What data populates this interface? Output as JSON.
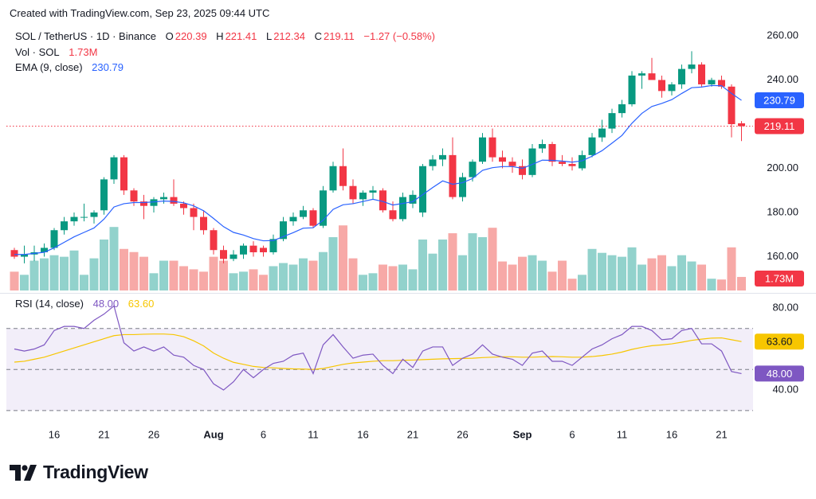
{
  "header": {
    "created": "Created with TradingView.com, Sep 23, 2025 09:44 UTC"
  },
  "chart_data": [
    {
      "type": "candlestick",
      "symbol": "SOL / TetherUS · 1D · Binance",
      "ohlc_labels": [
        "O",
        "H",
        "L",
        "C"
      ],
      "change": "−1.27 (−0.58%)",
      "categories": [
        null,
        null,
        null,
        null,
        "16",
        null,
        null,
        null,
        null,
        "21",
        null,
        null,
        null,
        null,
        "26",
        null,
        null,
        null,
        null,
        null,
        "Aug",
        null,
        null,
        null,
        null,
        "6",
        null,
        null,
        null,
        null,
        "11",
        null,
        null,
        null,
        null,
        "16",
        null,
        null,
        null,
        null,
        "21",
        null,
        null,
        null,
        null,
        "26",
        null,
        null,
        null,
        null,
        null,
        "Sep",
        null,
        null,
        null,
        null,
        "6",
        null,
        null,
        null,
        null,
        "11",
        null,
        null,
        null,
        null,
        "16",
        null,
        null,
        null,
        null,
        "21",
        null,
        null
      ],
      "open": [
        163,
        160,
        161,
        162,
        164,
        172,
        176,
        178,
        178,
        181,
        195,
        205,
        190,
        185,
        183,
        186,
        187,
        184,
        182,
        178,
        172,
        163,
        159,
        161,
        165,
        164,
        162,
        168,
        176,
        178,
        181,
        174,
        190,
        201,
        192,
        186,
        189,
        190,
        181,
        177,
        184,
        180,
        201,
        204,
        206,
        187,
        196,
        203,
        214,
        205,
        203,
        201,
        197,
        209,
        211,
        203,
        202,
        200,
        206,
        214,
        218,
        225,
        229,
        242,
        243,
        240,
        235,
        238,
        245,
        247,
        238,
        240,
        237,
        220.39
      ],
      "high": [
        164,
        165,
        165,
        166,
        173,
        178,
        180,
        184,
        181,
        196,
        206,
        206,
        191,
        188,
        187,
        189,
        195,
        185,
        184,
        181,
        173,
        165,
        163,
        166,
        167,
        165,
        170,
        178,
        180,
        183,
        182,
        192,
        203,
        209,
        195,
        190,
        192,
        191,
        185,
        189,
        190,
        202,
        206,
        209,
        214,
        198,
        204,
        216,
        218,
        208,
        205,
        204,
        211,
        213,
        212,
        206,
        205,
        208,
        216,
        222,
        227,
        231,
        244,
        244,
        250,
        242,
        239,
        247,
        253,
        248,
        241,
        242,
        238,
        221.41
      ],
      "low": [
        159,
        157,
        158,
        160,
        163,
        170,
        174,
        176,
        175,
        179,
        193,
        188,
        183,
        177,
        180,
        184,
        183,
        179,
        172,
        170,
        161,
        157,
        158,
        159,
        160,
        160,
        161,
        167,
        174,
        177,
        173,
        173,
        189,
        190,
        184,
        183,
        186,
        180,
        176,
        176,
        182,
        178,
        199,
        201,
        186,
        185,
        194,
        202,
        203,
        200,
        198,
        195,
        196,
        207,
        201,
        201,
        199,
        199,
        205,
        212,
        216,
        223,
        228,
        236,
        240,
        232,
        233,
        236,
        243,
        237,
        237,
        236,
        214,
        212.34
      ],
      "close": [
        160,
        161,
        162,
        164,
        172,
        176,
        178,
        178,
        180,
        195,
        205,
        190,
        185,
        183,
        186,
        187,
        184,
        182,
        178,
        172,
        163,
        159,
        161,
        165,
        162,
        162,
        168,
        176,
        178,
        181,
        174,
        190,
        201,
        192,
        186,
        189,
        190,
        181,
        177,
        187,
        188,
        201,
        204,
        206,
        187,
        196,
        203,
        214,
        205,
        203,
        201,
        197,
        209,
        211,
        203,
        202,
        201,
        206,
        214,
        218,
        225,
        229,
        242,
        243,
        240,
        235,
        238,
        245,
        247,
        238,
        240,
        237,
        220,
        219.11
      ],
      "up_color": "#089981",
      "down_color": "#f23645",
      "ylim": [
        144.7,
        265.4
      ],
      "yticks": [
        {
          "value": 160,
          "label": "160.00"
        },
        {
          "value": 180,
          "label": "180.00"
        },
        {
          "value": 200,
          "label": "200.00"
        },
        {
          "value": 220,
          "label": "220.00"
        },
        {
          "value": 240,
          "label": "240.00"
        },
        {
          "value": 260,
          "label": "260.00"
        }
      ],
      "volume": {
        "name": "Vol · SOL",
        "values": [
          2.4,
          2.0,
          3.8,
          4.1,
          4.5,
          4.3,
          5.1,
          2.0,
          4.1,
          6.5,
          8.1,
          5.3,
          4.9,
          4.3,
          2.2,
          3.8,
          3.8,
          3.1,
          2.7,
          2.4,
          4.3,
          3.8,
          2.2,
          2.4,
          2.7,
          2.0,
          3.1,
          3.5,
          3.3,
          4.1,
          3.8,
          4.9,
          6.8,
          8.3,
          4.1,
          2.0,
          2.2,
          3.3,
          3.1,
          3.3,
          2.7,
          6.5,
          4.7,
          6.5,
          7.3,
          4.5,
          7.3,
          6.8,
          8.0,
          3.7,
          3.3,
          4.3,
          4.5,
          3.8,
          2.4,
          3.8,
          1.5,
          2.0,
          5.3,
          4.8,
          4.5,
          4.3,
          5.5,
          3.3,
          4.1,
          4.5,
          3.1,
          4.5,
          3.7,
          3.3,
          1.5,
          1.4,
          5.5,
          1.73
        ],
        "value_labels": {
          "73": "1.73M"
        },
        "ylim": [
          0,
          34
        ],
        "up_color": "#92d2cc",
        "down_color": "#f7a9a7"
      },
      "ema": {
        "name": "EMA (9, close)",
        "color": "#2962ff",
        "values": [
          161,
          161,
          161.5,
          162,
          164,
          166.5,
          169,
          171,
          173,
          177,
          182.5,
          184,
          184.5,
          184.5,
          184.8,
          185.2,
          185,
          184.4,
          183,
          180.8,
          177.3,
          173.6,
          171,
          169.8,
          168.2,
          167.2,
          167.3,
          169.1,
          170.9,
          172.9,
          173.1,
          176.5,
          181.4,
          183.5,
          184,
          185,
          186,
          185,
          183.4,
          184.1,
          184.9,
          188.1,
          191.3,
          194.3,
          192.8,
          193.5,
          195.4,
          199.1,
          200.3,
          200.8,
          200.8,
          200,
          201.8,
          203.7,
          203.6,
          203.3,
          202.8,
          203.4,
          205.5,
          208,
          211.4,
          214.9,
          220.4,
          224.9,
          228,
          229.4,
          231.1,
          233.9,
          236.5,
          236.8,
          237.5,
          237.4,
          233.9,
          230.79
        ]
      }
    },
    {
      "type": "line",
      "title": "RSI (14, close)",
      "series": [
        {
          "color": "#7e57c2",
          "values": [
            60,
            59,
            60,
            62,
            69,
            71,
            71,
            70,
            74,
            77,
            81,
            63,
            59,
            61,
            59,
            61,
            57,
            56,
            52,
            50,
            43,
            40,
            44,
            50,
            46,
            50,
            53,
            54,
            57,
            58,
            48,
            62,
            67,
            61,
            55.5,
            57,
            57.5,
            52,
            48,
            55,
            51,
            59,
            61,
            61,
            52,
            55.5,
            57.5,
            62,
            57.5,
            56,
            55,
            52,
            58,
            59,
            54,
            54,
            52,
            56,
            60,
            62,
            65,
            67,
            71,
            71,
            69,
            64.5,
            65,
            69,
            70,
            62.5,
            62.5,
            59,
            49,
            48
          ],
          "value_labels": {
            "73": "48.00"
          }
        },
        {
          "color": "#f7c600",
          "values": [
            53.6,
            54,
            55,
            56,
            57.5,
            59,
            60.5,
            62,
            63.5,
            65,
            66.5,
            67,
            67,
            67.2,
            67.3,
            67.3,
            67,
            66,
            64,
            61.5,
            58,
            55.5,
            53.5,
            52.5,
            51.5,
            51,
            50.8,
            50.5,
            50.3,
            50.2,
            50,
            50.5,
            51.5,
            52.5,
            53.2,
            53.6,
            54,
            54.3,
            54.3,
            54.5,
            54.6,
            54.8,
            55,
            55.2,
            55.3,
            55.4,
            55.5,
            55.8,
            56,
            56.2,
            56.2,
            56,
            56,
            56.2,
            56.3,
            56.2,
            56,
            56,
            56.3,
            56.8,
            57.5,
            58.5,
            59.8,
            60.8,
            61.6,
            62,
            62.5,
            63.3,
            64.2,
            64.8,
            65.3,
            65.4,
            64.5,
            63.6
          ],
          "value_labels": {
            "73": "63.60"
          }
        }
      ],
      "ylim": [
        24.5,
        85.8
      ],
      "yticks": [
        {
          "value": 40,
          "label": "40.00"
        },
        {
          "value": 80,
          "label": "80.00"
        }
      ],
      "bands": [
        30,
        50,
        70
      ],
      "band_color": "#7e57c2"
    }
  ],
  "footer": {
    "brand": "TradingView"
  }
}
